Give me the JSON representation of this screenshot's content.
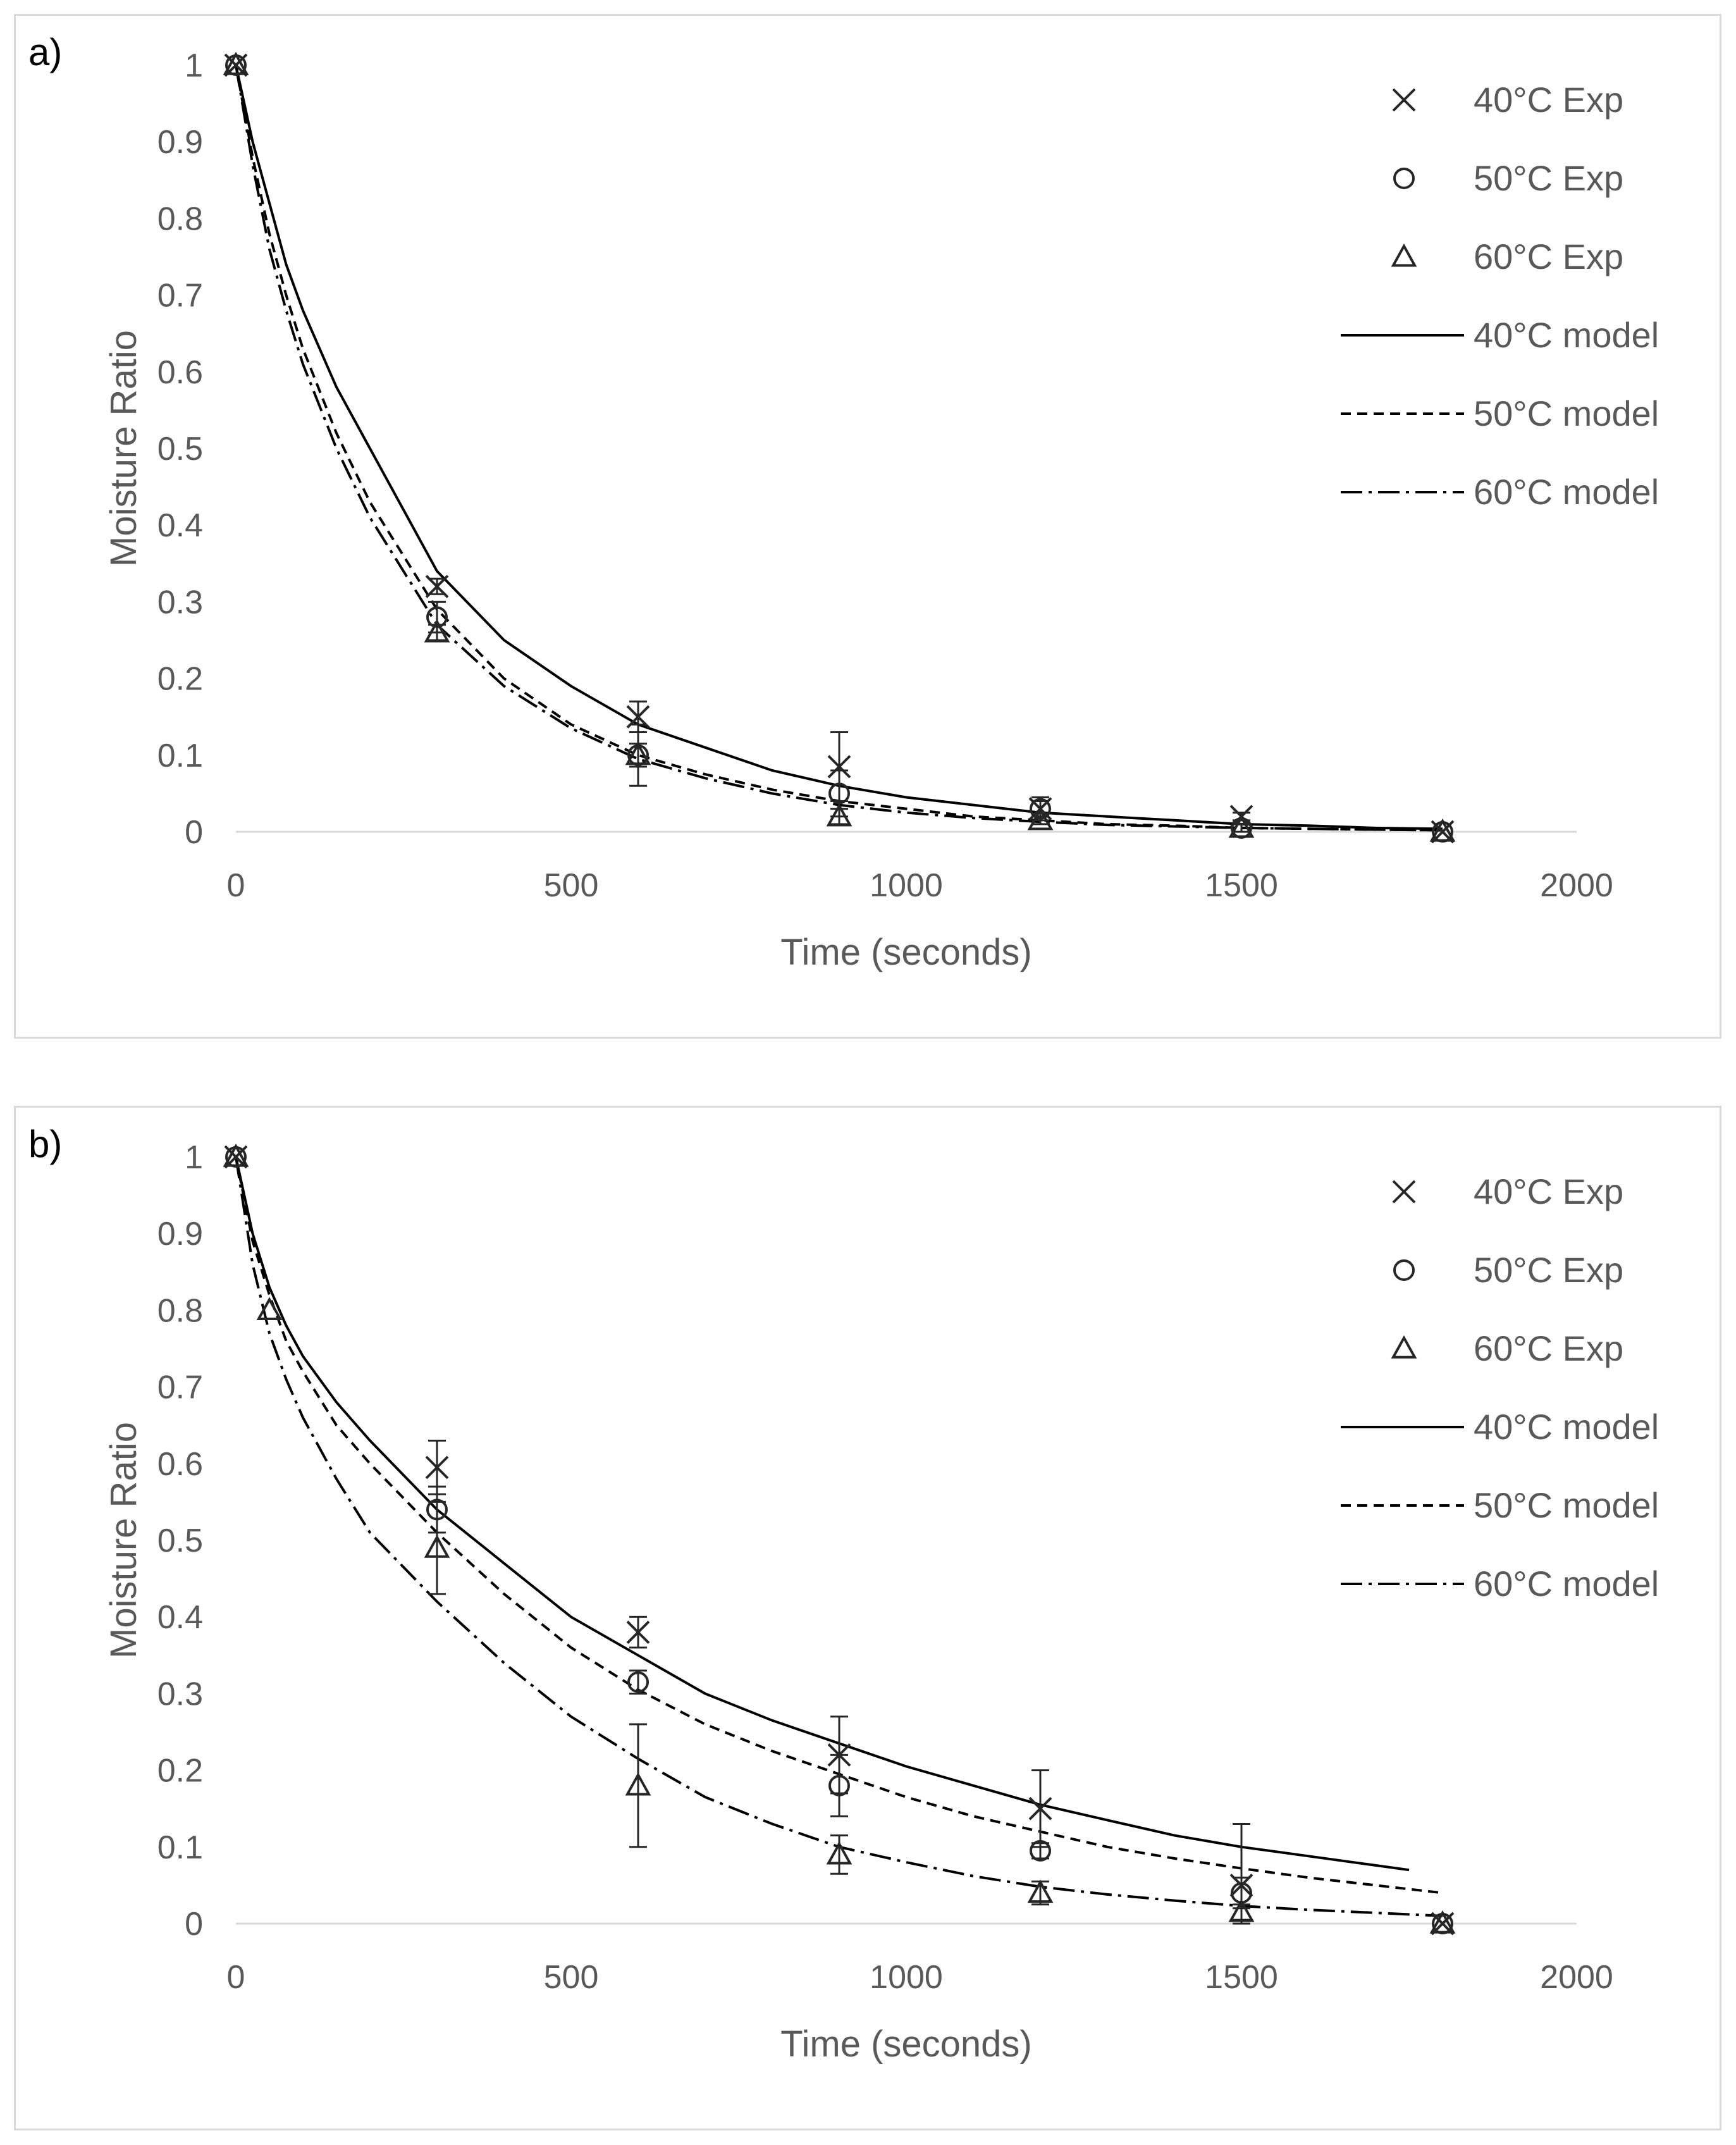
{
  "chart_data": [
    {
      "type": "scatter",
      "panel_label": "a)",
      "xlabel": "Time (seconds)",
      "ylabel": "Moisture Ratio",
      "xlim": [
        0,
        2000
      ],
      "ylim": [
        0,
        1
      ],
      "x_ticks": [
        "0",
        "500",
        "1000",
        "1500",
        "2000"
      ],
      "y_ticks": [
        "0",
        "0.1",
        "0.2",
        "0.3",
        "0.4",
        "0.5",
        "0.6",
        "0.7",
        "0.8",
        "0.9",
        "1"
      ],
      "legend_position": "right",
      "grid": false,
      "series": [
        {
          "name": "40°C Exp",
          "kind": "marker",
          "marker": "x",
          "x": [
            0,
            300,
            600,
            900,
            1200,
            1500,
            1800
          ],
          "y": [
            1,
            0.32,
            0.15,
            0.085,
            0.03,
            0.02,
            0
          ],
          "err": [
            0,
            0.01,
            0.02,
            0.045,
            0.015,
            0.005,
            0
          ]
        },
        {
          "name": "50°C Exp",
          "kind": "marker",
          "marker": "circle",
          "x": [
            0,
            300,
            600,
            900,
            1200,
            1500,
            1800
          ],
          "y": [
            1,
            0.28,
            0.1,
            0.05,
            0.03,
            0.005,
            0
          ],
          "err": [
            0,
            0.02,
            0.04,
            0.03,
            0.01,
            0.005,
            0
          ]
        },
        {
          "name": "60°C Exp",
          "kind": "marker",
          "marker": "triangle",
          "x": [
            0,
            300,
            600,
            900,
            1200,
            1500,
            1800
          ],
          "y": [
            1,
            0.26,
            0.1,
            0.02,
            0.015,
            0.005,
            0
          ],
          "err": [
            0,
            0.01,
            0.015,
            0.01,
            0.005,
            0,
            0
          ]
        },
        {
          "name": "40°C model",
          "kind": "line",
          "style": "solid",
          "x": [
            0,
            25,
            50,
            75,
            100,
            150,
            200,
            300,
            400,
            500,
            600,
            700,
            800,
            900,
            1000,
            1100,
            1200,
            1300,
            1400,
            1500,
            1600,
            1700,
            1800
          ],
          "y": [
            1,
            0.9,
            0.82,
            0.74,
            0.68,
            0.58,
            0.5,
            0.34,
            0.25,
            0.19,
            0.14,
            0.11,
            0.08,
            0.06,
            0.045,
            0.035,
            0.025,
            0.02,
            0.015,
            0.01,
            0.008,
            0.005,
            0.004
          ]
        },
        {
          "name": "50°C model",
          "kind": "line",
          "style": "dashed",
          "x": [
            0,
            25,
            50,
            75,
            100,
            150,
            200,
            300,
            400,
            500,
            600,
            700,
            800,
            900,
            1000,
            1100,
            1200,
            1300,
            1400,
            1500,
            1600,
            1700,
            1800
          ],
          "y": [
            1,
            0.88,
            0.78,
            0.7,
            0.63,
            0.52,
            0.43,
            0.29,
            0.2,
            0.14,
            0.1,
            0.075,
            0.055,
            0.04,
            0.03,
            0.02,
            0.015,
            0.01,
            0.008,
            0.005,
            0.004,
            0.003,
            0.002
          ]
        },
        {
          "name": "60°C model",
          "kind": "line",
          "style": "dashdot",
          "x": [
            0,
            25,
            50,
            75,
            100,
            150,
            200,
            300,
            400,
            500,
            600,
            700,
            800,
            900,
            1000,
            1100,
            1200,
            1300,
            1400,
            1500,
            1600,
            1700,
            1800
          ],
          "y": [
            1,
            0.87,
            0.76,
            0.68,
            0.61,
            0.5,
            0.41,
            0.27,
            0.19,
            0.135,
            0.095,
            0.07,
            0.05,
            0.035,
            0.025,
            0.018,
            0.013,
            0.009,
            0.007,
            0.005,
            0.004,
            0.003,
            0.002
          ]
        }
      ]
    },
    {
      "type": "scatter",
      "panel_label": "b)",
      "xlabel": "Time (seconds)",
      "ylabel": "Moisture Ratio",
      "xlim": [
        0,
        2000
      ],
      "ylim": [
        0,
        1
      ],
      "x_ticks": [
        "0",
        "500",
        "1000",
        "1500",
        "2000"
      ],
      "y_ticks": [
        "0",
        "0.1",
        "0.2",
        "0.3",
        "0.4",
        "0.5",
        "0.6",
        "0.7",
        "0.8",
        "0.9",
        "1"
      ],
      "legend_position": "right",
      "grid": false,
      "series": [
        {
          "name": "40°C Exp",
          "kind": "marker",
          "marker": "x",
          "x": [
            0,
            300,
            600,
            900,
            1200,
            1500,
            1800
          ],
          "y": [
            1,
            0.595,
            0.38,
            0.22,
            0.15,
            0.05,
            0
          ],
          "err": [
            0,
            0.035,
            0.02,
            0.05,
            0.05,
            0.08,
            0
          ]
        },
        {
          "name": "50°C Exp",
          "kind": "marker",
          "marker": "circle",
          "x": [
            0,
            300,
            600,
            900,
            1200,
            1500,
            1800
          ],
          "y": [
            1,
            0.54,
            0.315,
            0.18,
            0.095,
            0.04,
            0
          ],
          "err": [
            0,
            0.03,
            0.015,
            0.04,
            0.01,
            0.02,
            0
          ]
        },
        {
          "name": "60°C Exp",
          "kind": "marker",
          "marker": "triangle",
          "x": [
            0,
            50,
            300,
            600,
            900,
            1200,
            1500,
            1800
          ],
          "y": [
            1,
            0.8,
            0.49,
            0.18,
            0.09,
            0.04,
            0.015,
            0
          ],
          "err": [
            0,
            0,
            0.06,
            0.08,
            0.025,
            0.015,
            0.01,
            0
          ]
        },
        {
          "name": "40°C model",
          "kind": "line",
          "style": "solid",
          "x": [
            0,
            25,
            50,
            75,
            100,
            150,
            200,
            300,
            400,
            500,
            600,
            700,
            800,
            900,
            1000,
            1100,
            1200,
            1300,
            1400,
            1500,
            1600,
            1750
          ],
          "y": [
            1,
            0.9,
            0.83,
            0.78,
            0.74,
            0.68,
            0.63,
            0.54,
            0.47,
            0.4,
            0.35,
            0.3,
            0.265,
            0.235,
            0.205,
            0.18,
            0.155,
            0.135,
            0.115,
            0.1,
            0.088,
            0.07
          ]
        },
        {
          "name": "50°C model",
          "kind": "line",
          "style": "dashed",
          "x": [
            0,
            25,
            50,
            75,
            100,
            150,
            200,
            300,
            400,
            500,
            600,
            700,
            800,
            900,
            1000,
            1100,
            1200,
            1300,
            1400,
            1500,
            1600,
            1700,
            1800
          ],
          "y": [
            1,
            0.89,
            0.82,
            0.76,
            0.72,
            0.65,
            0.6,
            0.51,
            0.43,
            0.36,
            0.305,
            0.26,
            0.225,
            0.195,
            0.165,
            0.14,
            0.12,
            0.1,
            0.085,
            0.072,
            0.06,
            0.05,
            0.04
          ]
        },
        {
          "name": "60°C model",
          "kind": "line",
          "style": "dashdot",
          "x": [
            0,
            25,
            50,
            75,
            100,
            150,
            200,
            300,
            400,
            500,
            600,
            700,
            800,
            900,
            1000,
            1100,
            1200,
            1300,
            1400,
            1500,
            1600,
            1700,
            1800
          ],
          "y": [
            1,
            0.86,
            0.77,
            0.71,
            0.66,
            0.58,
            0.51,
            0.42,
            0.34,
            0.27,
            0.215,
            0.165,
            0.13,
            0.1,
            0.08,
            0.062,
            0.048,
            0.038,
            0.03,
            0.023,
            0.018,
            0.014,
            0.01
          ]
        }
      ]
    }
  ]
}
